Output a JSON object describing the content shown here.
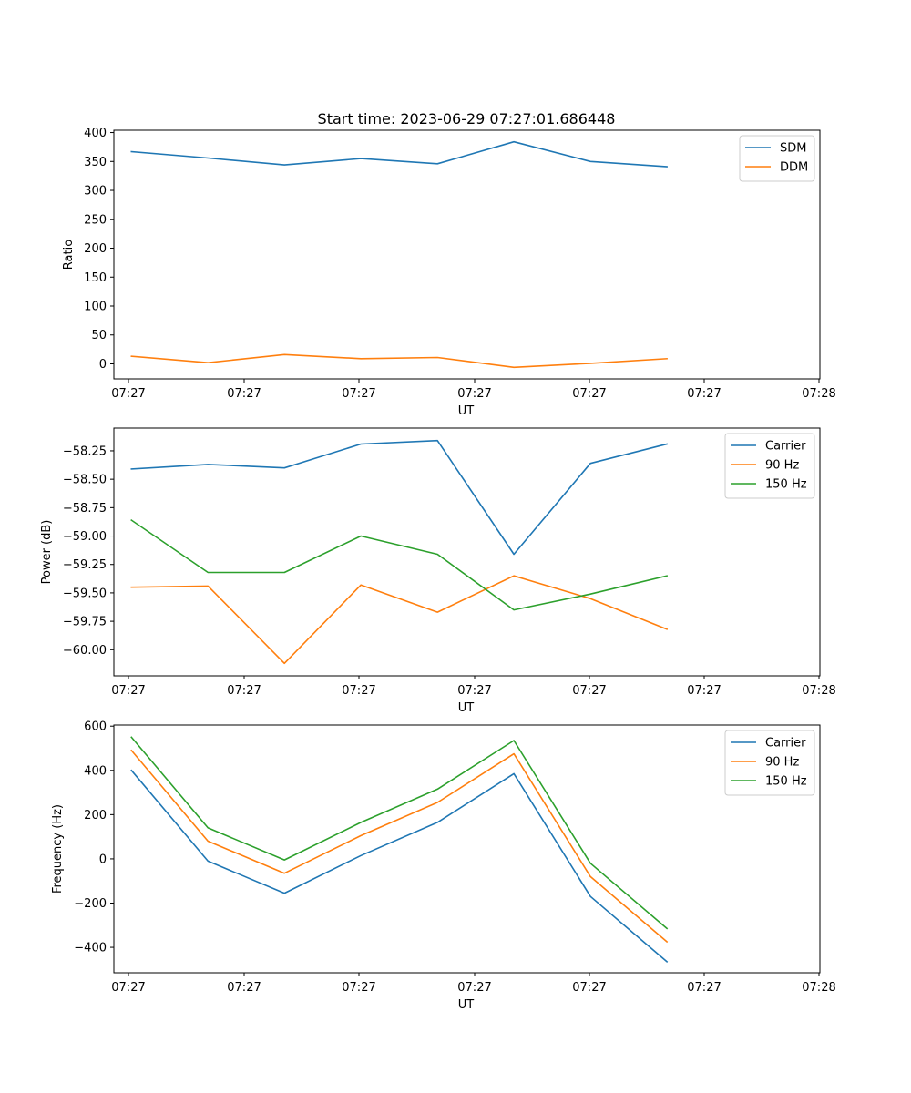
{
  "figure": {
    "title": "Start time: 2023-06-29 07:27:01.686448"
  },
  "chart_data": [
    {
      "type": "line",
      "title": "Start time: 2023-06-29 07:27:01.686448",
      "xlabel": "UT",
      "ylabel": "Ratio",
      "x_tick_labels": [
        "07:27",
        "07:27",
        "07:27",
        "07:27",
        "07:27",
        "07:27",
        "07:28"
      ],
      "x": [
        1,
        2,
        3,
        4,
        5,
        6,
        7,
        8
      ],
      "xlim": [
        0.77,
        10.0
      ],
      "ylim": [
        -26,
        404
      ],
      "y_ticks": [
        0,
        50,
        100,
        150,
        200,
        250,
        300,
        350,
        400
      ],
      "y_tick_labels": [
        "0",
        "50",
        "100",
        "150",
        "200",
        "250",
        "300",
        "350",
        "400"
      ],
      "legend_position": "upper-right",
      "grid": false,
      "series": [
        {
          "name": "SDM",
          "color": "#1f77b4",
          "values": [
            367,
            356,
            344,
            355,
            346,
            384,
            350,
            341
          ]
        },
        {
          "name": "DDM",
          "color": "#ff7f0e",
          "values": [
            13,
            2,
            16,
            9,
            11,
            -6,
            1,
            9
          ]
        }
      ]
    },
    {
      "type": "line",
      "title": "",
      "xlabel": "UT",
      "ylabel": "Power (dB)",
      "x_tick_labels": [
        "07:27",
        "07:27",
        "07:27",
        "07:27",
        "07:27",
        "07:27",
        "07:28"
      ],
      "x": [
        1,
        2,
        3,
        4,
        5,
        6,
        7,
        8
      ],
      "xlim": [
        0.77,
        10.0
      ],
      "ylim": [
        -60.23,
        -58.05
      ],
      "y_ticks": [
        -60.0,
        -59.75,
        -59.5,
        -59.25,
        -59.0,
        -58.75,
        -58.5,
        -58.25
      ],
      "y_tick_labels": [
        "−60.00",
        "−59.75",
        "−59.50",
        "−59.25",
        "−59.00",
        "−58.75",
        "−58.50",
        "−58.25"
      ],
      "legend_position": "upper-right",
      "grid": false,
      "series": [
        {
          "name": "Carrier",
          "color": "#1f77b4",
          "values": [
            -58.41,
            -58.37,
            -58.4,
            -58.19,
            -58.16,
            -59.16,
            -58.36,
            -58.19
          ]
        },
        {
          "name": "90 Hz",
          "color": "#ff7f0e",
          "values": [
            -59.45,
            -59.44,
            -60.12,
            -59.43,
            -59.67,
            -59.35,
            -59.55,
            -59.82
          ]
        },
        {
          "name": "150 Hz",
          "color": "#2ca02c",
          "values": [
            -58.86,
            -59.32,
            -59.32,
            -59.0,
            -59.16,
            -59.65,
            -59.51,
            -59.35
          ]
        }
      ]
    },
    {
      "type": "line",
      "title": "",
      "xlabel": "UT",
      "ylabel": "Frequency (Hz)",
      "x_tick_labels": [
        "07:27",
        "07:27",
        "07:27",
        "07:27",
        "07:27",
        "07:27",
        "07:28"
      ],
      "x": [
        1,
        2,
        3,
        4,
        5,
        6,
        7,
        8
      ],
      "xlim": [
        0.77,
        10.0
      ],
      "ylim": [
        -515,
        605
      ],
      "y_ticks": [
        -400,
        -200,
        0,
        200,
        400,
        600
      ],
      "y_tick_labels": [
        "−400",
        "−200",
        "0",
        "200",
        "400",
        "600"
      ],
      "legend_position": "upper-right",
      "grid": false,
      "series": [
        {
          "name": "Carrier",
          "color": "#1f77b4",
          "values": [
            400,
            -10,
            -155,
            15,
            165,
            385,
            -170,
            -465
          ]
        },
        {
          "name": "90 Hz",
          "color": "#ff7f0e",
          "values": [
            490,
            80,
            -65,
            105,
            255,
            475,
            -80,
            -375
          ]
        },
        {
          "name": "150 Hz",
          "color": "#2ca02c",
          "values": [
            550,
            140,
            -5,
            165,
            315,
            535,
            -20,
            -315
          ]
        }
      ]
    }
  ]
}
